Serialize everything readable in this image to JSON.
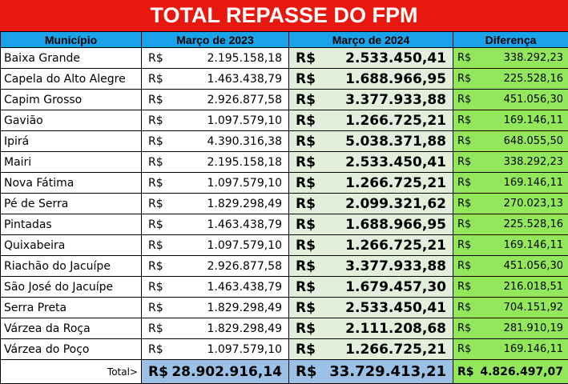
{
  "title": "TOTAL REPASSE DO FPM",
  "headers": {
    "municipio": "Município",
    "marco2023": "Março de 2023",
    "marco2024": "Março de 2024",
    "diferenca": "Diferença"
  },
  "currency": "R$",
  "rows": [
    {
      "municipio": "Baixa Grande",
      "m23": "2.195.158,18",
      "m24": "2.533.450,41",
      "dif": "338.292,23"
    },
    {
      "municipio": "Capela do Alto Alegre",
      "m23": "1.463.438,79",
      "m24": "1.688.966,95",
      "dif": "225.528,16"
    },
    {
      "municipio": "Capim Grosso",
      "m23": "2.926.877,58",
      "m24": "3.377.933,88",
      "dif": "451.056,30"
    },
    {
      "municipio": "Gavião",
      "m23": "1.097.579,10",
      "m24": "1.266.725,21",
      "dif": "169.146,11"
    },
    {
      "municipio": "Ipirá",
      "m23": "4.390.316,38",
      "m24": "5.038.371,88",
      "dif": "648.055,50"
    },
    {
      "municipio": "Mairi",
      "m23": "2.195.158,18",
      "m24": "2.533.450,41",
      "dif": "338.292,23"
    },
    {
      "municipio": "Nova Fátima",
      "m23": "1.097.579,10",
      "m24": "1.266.725,21",
      "dif": "169.146,11"
    },
    {
      "municipio": "Pé de Serra",
      "m23": "1.829.298,49",
      "m24": "2.099.321,62",
      "dif": "270.023,13"
    },
    {
      "municipio": "Pintadas",
      "m23": "1.463.438,79",
      "m24": "1.688.966,95",
      "dif": "225.528,16"
    },
    {
      "municipio": "Quixabeira",
      "m23": "1.097.579,10",
      "m24": "1.266.725,21",
      "dif": "169.146,11"
    },
    {
      "municipio": "Riachão do Jacuípe",
      "m23": "2.926.877,58",
      "m24": "3.377.933,88",
      "dif": "451.056,30"
    },
    {
      "municipio": "São José do Jacuípe",
      "m23": "1.463.438,79",
      "m24": "1.679.457,30",
      "dif": "216.018,51"
    },
    {
      "municipio": "Serra Preta",
      "m23": "1.829.298,49",
      "m24": "2.533.450,41",
      "dif": "704.151,92"
    },
    {
      "municipio": "Várzea da Roça",
      "m23": "1.829.298,49",
      "m24": "2.111.208,68",
      "dif": "281.910,19"
    },
    {
      "municipio": "Várzea do Poço",
      "m23": "1.097.579,10",
      "m24": "1.266.725,21",
      "dif": "169.146,11"
    }
  ],
  "total": {
    "label": "Total>",
    "m23": "28.902.916,14",
    "m24": "33.729.413,21",
    "dif": "4.826.497,07"
  },
  "colors": {
    "title_bg": "#e8180e",
    "header_bg": "#1aa3e8",
    "m24_bg": "#e2efda",
    "dif_bg": "#92e85a",
    "total_bg": "#9bc2e6"
  }
}
